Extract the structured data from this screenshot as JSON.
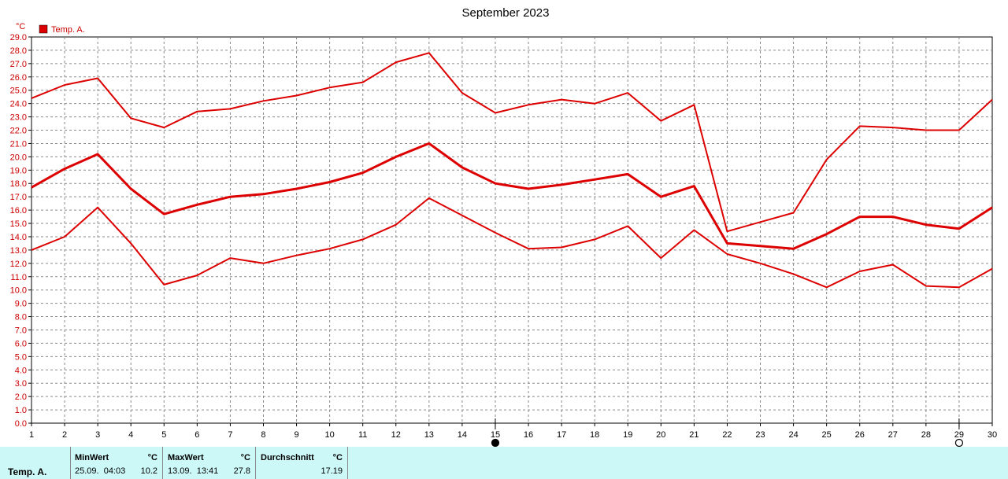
{
  "chart_data": {
    "type": "line",
    "title": "September 2023",
    "ylabel": "°C",
    "ylim": [
      0,
      29
    ],
    "ytick_step": 1,
    "grid": true,
    "legend": {
      "placement": "top-left",
      "entries": [
        "Temp. A."
      ]
    },
    "x": [
      1,
      2,
      3,
      4,
      5,
      6,
      7,
      8,
      9,
      10,
      11,
      12,
      13,
      14,
      15,
      16,
      17,
      18,
      19,
      20,
      21,
      22,
      23,
      24,
      25,
      26,
      27,
      28,
      29,
      30
    ],
    "series": [
      {
        "role": "max",
        "color": "#dd0000",
        "values": [
          24.4,
          25.4,
          25.9,
          22.9,
          22.2,
          23.4,
          23.6,
          24.2,
          24.6,
          25.2,
          25.6,
          27.1,
          27.8,
          24.8,
          23.3,
          23.9,
          24.3,
          24.0,
          24.8,
          22.7,
          23.9,
          14.4,
          15.1,
          15.8,
          19.8,
          22.3,
          22.2,
          22.0,
          22.0,
          24.3
        ]
      },
      {
        "role": "mean",
        "color": "#dd0000",
        "values": [
          17.7,
          19.1,
          20.2,
          17.6,
          15.7,
          16.4,
          17.0,
          17.2,
          17.6,
          18.1,
          18.8,
          20.0,
          21.0,
          19.2,
          18.0,
          17.6,
          17.9,
          18.3,
          18.7,
          17.0,
          17.8,
          13.5,
          13.3,
          13.1,
          14.2,
          15.5,
          15.5,
          14.9,
          14.6,
          16.2
        ]
      },
      {
        "role": "min",
        "color": "#dd0000",
        "values": [
          13.0,
          14.0,
          16.2,
          13.5,
          10.4,
          11.1,
          12.4,
          12.0,
          12.6,
          13.1,
          13.8,
          14.9,
          16.9,
          15.6,
          14.3,
          13.1,
          13.2,
          13.8,
          14.8,
          12.4,
          14.5,
          12.7,
          12.0,
          11.2,
          10.2,
          11.4,
          11.9,
          10.3,
          10.2,
          11.6
        ]
      }
    ],
    "moon_markers": [
      {
        "day": 15,
        "phase": "new-moon-icon"
      },
      {
        "day": 29,
        "phase": "full-moon-icon"
      }
    ]
  },
  "stats": {
    "row_label": "Temp. A.",
    "min_header": "MinWert",
    "min_unit": "°C",
    "min_when": "25.09.  04:03",
    "min_value": "10.2",
    "max_header": "MaxWert",
    "max_unit": "°C",
    "max_when": "13.09.  13:41",
    "max_value": "27.8",
    "avg_header": "Durchschnitt",
    "avg_unit": "°C",
    "avg_value": "17.19"
  }
}
